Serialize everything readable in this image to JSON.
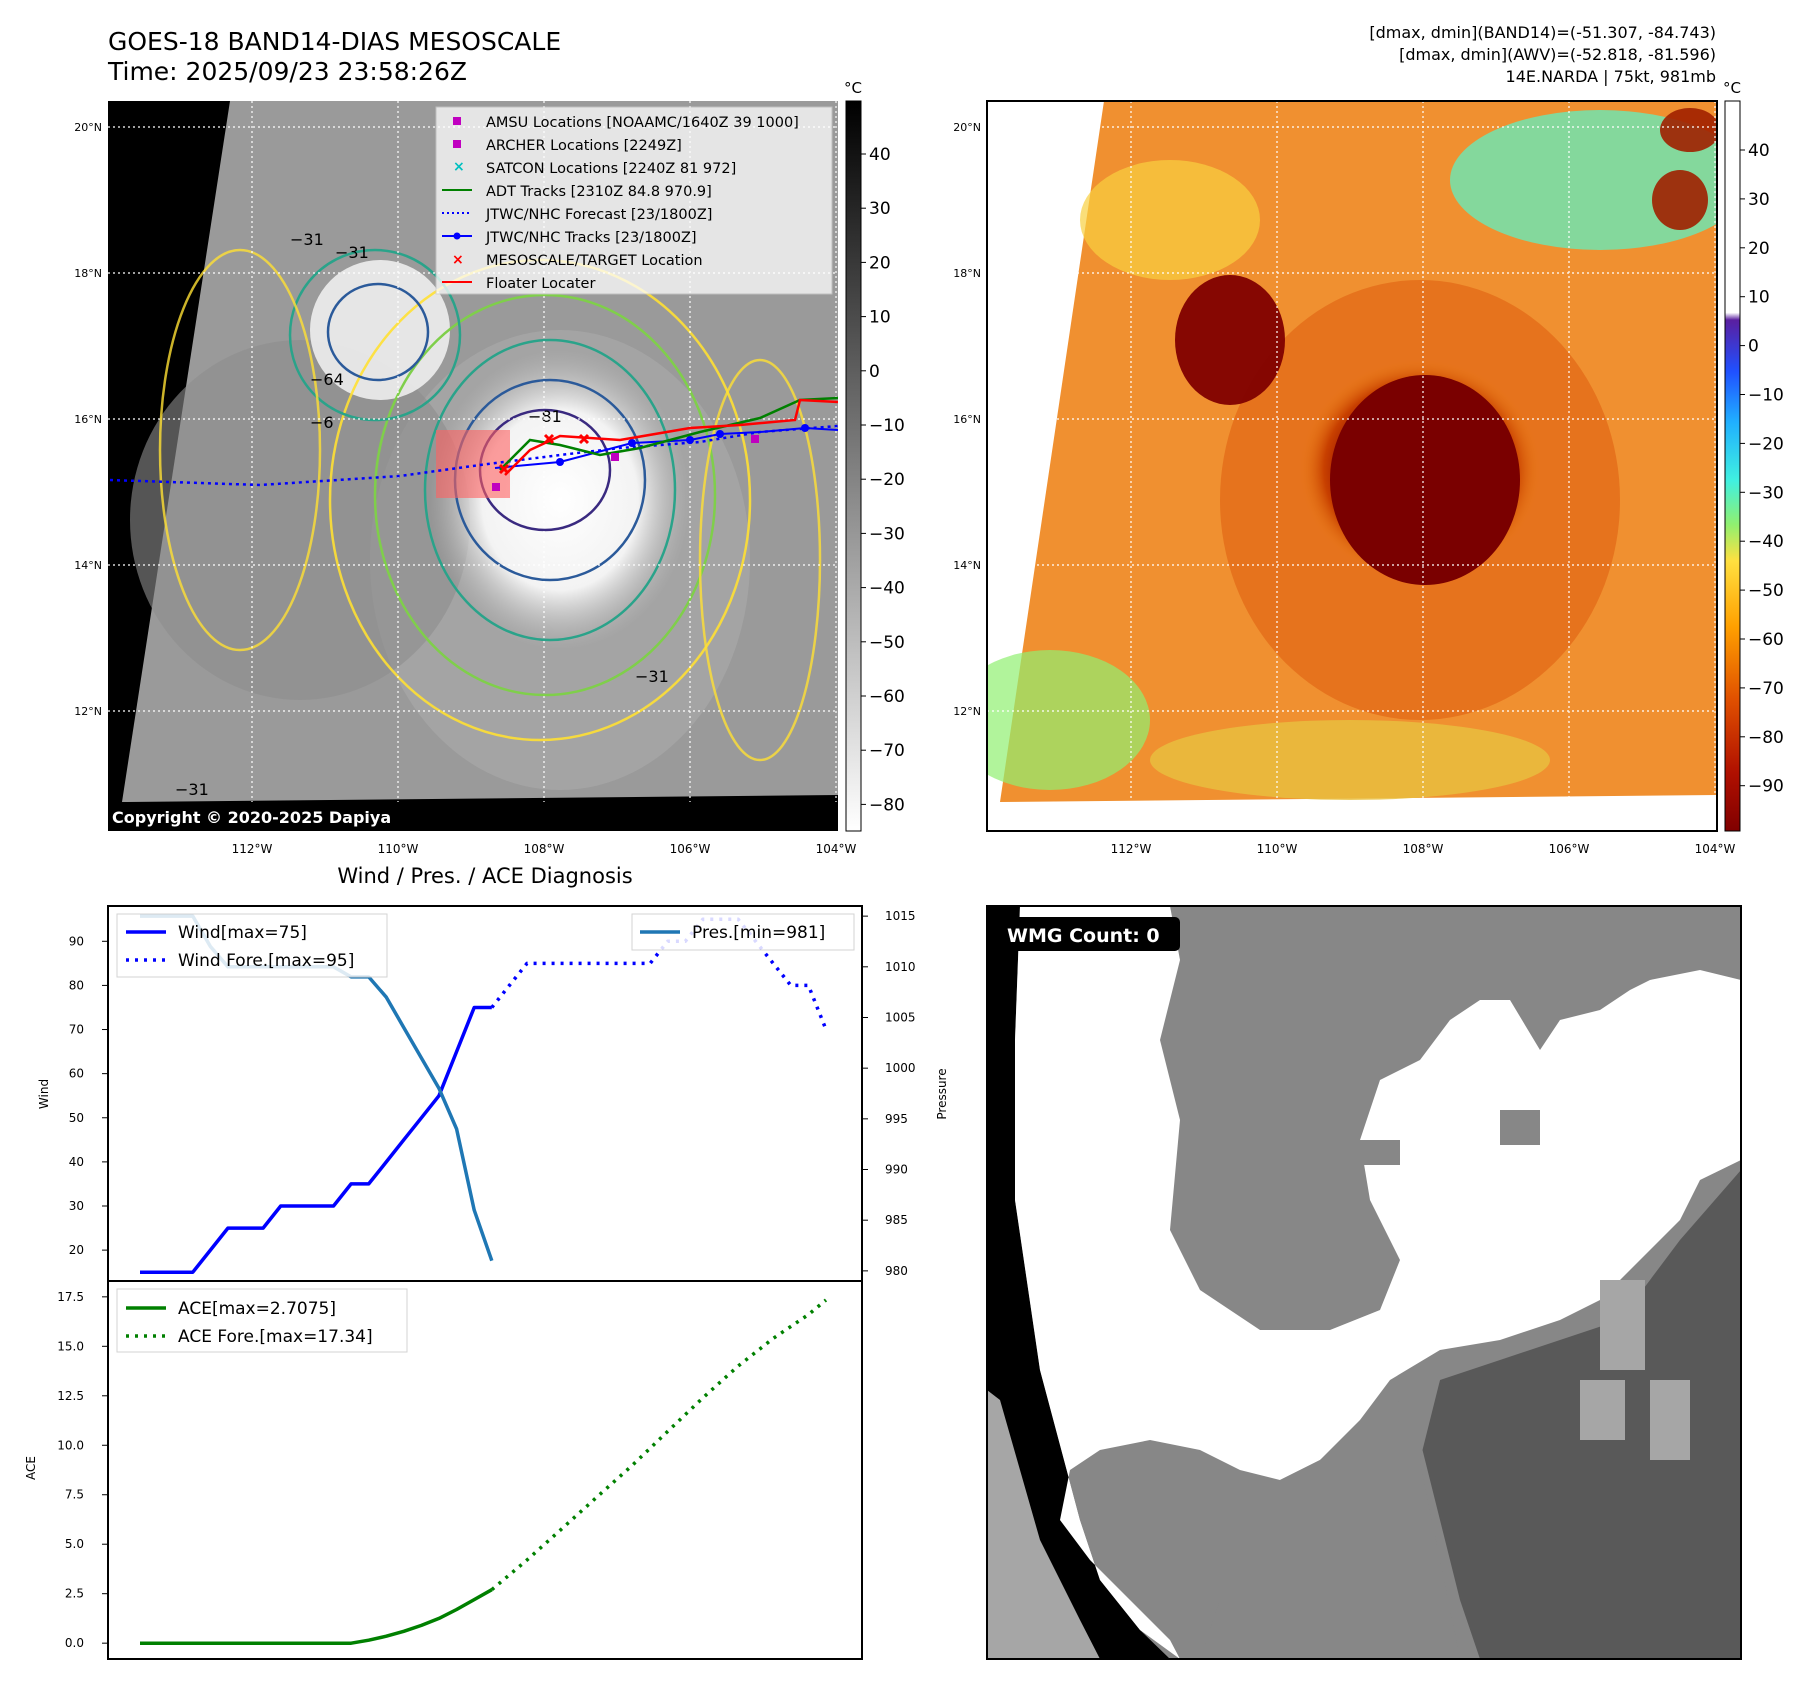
{
  "header": {
    "title_line1": "GOES-18 BAND14-DIAS MESOSCALE",
    "title_line2": "Time: 2025/09/23 23:58:26Z",
    "stats_line1": "[dmax, dmin](BAND14)=(-51.307, -84.743)",
    "stats_line2": "[dmax, dmin](AWV)=(-52.818, -81.596)",
    "stats_line3": "14E.NARDA | 75kt, 981mb"
  },
  "map_common": {
    "lat_labels": [
      "20°N",
      "18°N",
      "16°N",
      "14°N",
      "12°N"
    ],
    "lon_labels": [
      "112°W",
      "110°W",
      "108°W",
      "106°W",
      "104°W"
    ]
  },
  "ir_panel": {
    "copyright": "Copyright © 2020-2025 Dapiya",
    "colorbar_unit": "°C",
    "colorbar_ticks": [
      "40",
      "30",
      "20",
      "10",
      "0",
      "−10",
      "−20",
      "−30",
      "−40",
      "−50",
      "−60",
      "−70",
      "−80"
    ],
    "contour_labels": [
      "−81",
      "−64",
      "−6",
      "−31",
      "−31",
      "−31",
      "−31"
    ],
    "legend": [
      "AMSU Locations [NOAAMC/1640Z 39 1000]",
      "ARCHER Locations [2249Z]",
      "SATCON Locations [2240Z 81 972]",
      "ADT Tracks [2310Z 84.8 970.9]",
      "JTWC/NHC Forecast [23/1800Z]",
      "JTWC/NHC Tracks [23/1800Z]",
      "MESOSCALE/TARGET Location",
      "Floater Locater"
    ],
    "colors": {
      "amsu": "#c000c0",
      "archer": "#c000c0",
      "satcon": "#00c0c0",
      "adt": "#008000",
      "forecast": "#0000ff",
      "tracks": "#0000ff",
      "target": "#ff0000",
      "floater": "#ff0000"
    }
  },
  "awv_panel": {
    "colorbar_unit": "°C",
    "colorbar_ticks": [
      "40",
      "30",
      "20",
      "10",
      "0",
      "−10",
      "−20",
      "−30",
      "−40",
      "−50",
      "−60",
      "−70",
      "−80",
      "−90"
    ]
  },
  "wmg_panel": {
    "count_label": "WMG Count: 0"
  },
  "chart_data": [
    {
      "type": "line",
      "title": "Wind / Pres. / ACE Diagnosis",
      "ylabel": "Wind",
      "ylabel_right": "Pressure",
      "ylim": [
        13,
        98
      ],
      "ylim_right": [
        979,
        1016
      ],
      "yticks": [
        "90",
        "80",
        "70",
        "60",
        "50",
        "40",
        "30",
        "20"
      ],
      "yticks_right": [
        "1015",
        "1010",
        "1005",
        "1000",
        "995",
        "990",
        "985",
        "980"
      ],
      "series": [
        {
          "name": "Wind[max=75]",
          "color": "#0000ff",
          "style": "solid",
          "x": [
            0,
            1,
            2,
            3,
            4,
            5,
            6,
            7,
            8,
            9,
            10,
            11,
            12,
            13,
            14,
            15,
            16,
            17,
            18,
            19,
            20
          ],
          "values": [
            15,
            15,
            15,
            15,
            20,
            25,
            25,
            25,
            30,
            30,
            30,
            30,
            35,
            35,
            40,
            45,
            50,
            55,
            65,
            75,
            75
          ]
        },
        {
          "name": "Wind Fore.[max=95]",
          "color": "#0000ff",
          "style": "dotted",
          "x": [
            20,
            21,
            22,
            23,
            24,
            25,
            26,
            27,
            28,
            29,
            30,
            31,
            32,
            33,
            34,
            35,
            36,
            37,
            38,
            39
          ],
          "values": [
            75,
            80,
            85,
            85,
            85,
            85,
            85,
            85,
            85,
            85,
            90,
            90,
            95,
            95,
            95,
            90,
            85,
            80,
            80,
            70
          ]
        },
        {
          "name": "Pres.[min=981]",
          "color": "#1f77b4",
          "style": "solid",
          "axis": "right",
          "x": [
            0,
            1,
            2,
            3,
            4,
            5,
            6,
            7,
            8,
            9,
            10,
            11,
            12,
            13,
            14,
            15,
            16,
            17,
            18,
            19,
            20
          ],
          "values": [
            1015,
            1015,
            1015,
            1015,
            1012,
            1010,
            1010,
            1010,
            1010,
            1010,
            1010,
            1010,
            1009,
            1009,
            1007,
            1004,
            1001,
            998,
            994,
            986,
            981
          ]
        }
      ]
    },
    {
      "type": "line",
      "ylabel": "ACE",
      "ylim": [
        -0.8,
        18.3
      ],
      "yticks": [
        "17.5",
        "15.0",
        "12.5",
        "10.0",
        "7.5",
        "5.0",
        "2.5",
        "0.0"
      ],
      "series": [
        {
          "name": "ACE[max=2.7075]",
          "color": "#008000",
          "style": "solid",
          "x": [
            0,
            2,
            4,
            6,
            8,
            10,
            12,
            13,
            14,
            15,
            16,
            17,
            18,
            19,
            20
          ],
          "values": [
            0,
            0,
            0,
            0,
            0,
            0,
            0,
            0.15,
            0.35,
            0.6,
            0.9,
            1.25,
            1.7,
            2.2,
            2.7
          ]
        },
        {
          "name": "ACE Fore.[max=17.34]",
          "color": "#008000",
          "style": "dotted",
          "x": [
            20,
            22,
            24,
            26,
            28,
            30,
            32,
            34,
            36,
            38,
            39
          ],
          "values": [
            2.7,
            4.2,
            5.8,
            7.4,
            9.0,
            10.7,
            12.4,
            14.0,
            15.4,
            16.6,
            17.34
          ]
        }
      ]
    }
  ]
}
